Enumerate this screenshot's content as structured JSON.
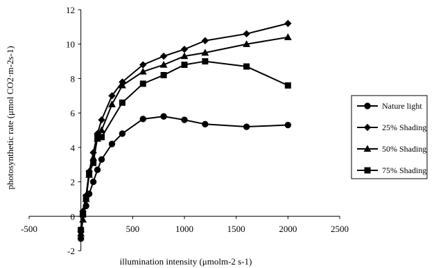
{
  "chart_data": {
    "type": "line",
    "title": "",
    "xlabel": "illumination intensity (μmolm-2 s-1)",
    "ylabel": "photosynthetic rate (μmol CO2·m-2s-1)",
    "xlim": [
      -500,
      2500
    ],
    "ylim": [
      -2,
      12
    ],
    "xticks": [
      "-500",
      "0",
      "500",
      "1000",
      "1500",
      "2000",
      "2500"
    ],
    "yticks": [
      "-2",
      "0",
      "2",
      "4",
      "6",
      "8",
      "10",
      "12"
    ],
    "grid": false,
    "legend_position": "right",
    "series": [
      {
        "name": "Nature light",
        "marker": "circle",
        "color": "#000000",
        "x": [
          0,
          20,
          50,
          80,
          120,
          160,
          200,
          300,
          400,
          600,
          800,
          1000,
          1200,
          1600,
          2000
        ],
        "y": [
          -1.3,
          0.1,
          0.6,
          1.3,
          2.0,
          2.7,
          3.3,
          4.2,
          4.8,
          5.65,
          5.8,
          5.6,
          5.35,
          5.2,
          5.3
        ]
      },
      {
        "name": "25% Shading",
        "marker": "diamond",
        "color": "#000000",
        "x": [
          0,
          20,
          50,
          80,
          120,
          160,
          200,
          300,
          400,
          600,
          800,
          1000,
          1200,
          1600,
          2000
        ],
        "y": [
          -0.9,
          0.3,
          1.2,
          2.6,
          3.7,
          4.8,
          5.6,
          7.0,
          7.8,
          8.8,
          9.3,
          9.7,
          10.2,
          10.6,
          11.2
        ]
      },
      {
        "name": "50% Shading",
        "marker": "triangle",
        "color": "#000000",
        "x": [
          0,
          20,
          50,
          80,
          120,
          160,
          200,
          300,
          400,
          600,
          800,
          1000,
          1200,
          1600,
          2000
        ],
        "y": [
          -1.0,
          -0.2,
          1.0,
          2.4,
          3.4,
          4.5,
          5.0,
          6.5,
          7.6,
          8.4,
          8.8,
          9.3,
          9.5,
          10.0,
          10.4
        ]
      },
      {
        "name": "75% Shading",
        "marker": "square",
        "color": "#000000",
        "x": [
          0,
          20,
          50,
          80,
          120,
          160,
          200,
          400,
          600,
          800,
          1000,
          1200,
          1600,
          2000
        ],
        "y": [
          -0.8,
          0.1,
          1.1,
          2.5,
          3.1,
          4.6,
          4.6,
          6.6,
          7.7,
          8.2,
          8.8,
          9.0,
          8.7,
          7.6
        ]
      }
    ]
  }
}
